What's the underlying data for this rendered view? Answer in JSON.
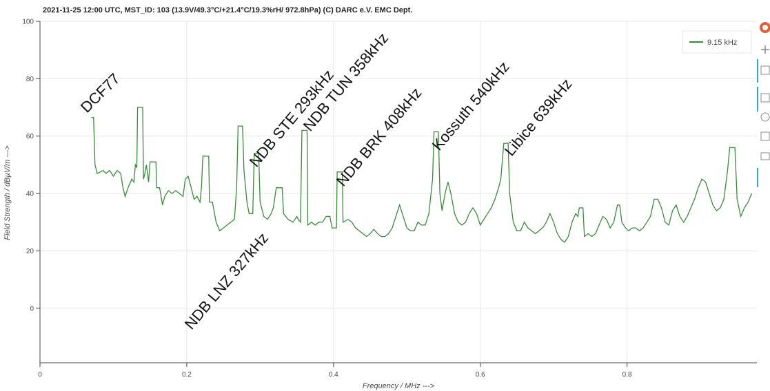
{
  "chart_data": {
    "type": "line",
    "title": "2021-11-25 12:00  UTC,  MST_ID:  103   (13.9V/49.3°C/+21.4°C/19.3%rH/ 972.8hPa)   (C) DARC e.V. EMC Dept.",
    "x_label": "Frequency / MHz --->",
    "y_label": "Field Strength / dBµV/m --->",
    "xlim": [
      0,
      0.977
    ],
    "ylim": [
      -19,
      100
    ],
    "xticks": [
      0,
      0.2,
      0.4,
      0.6,
      0.8
    ],
    "yticks": [
      0,
      20,
      40,
      60,
      80,
      100
    ],
    "grid": true,
    "legend": "top-right",
    "annotations": [
      "DCF77",
      "NDB STE 293kHz",
      "NDB TUN 358kHz",
      "NDB BRK 408kHz",
      "Kossuth 540kHz",
      "Libice 639kHz",
      "NDB LNZ 327kHz"
    ],
    "x": [
      0.07,
      0.073,
      0.075,
      0.078,
      0.082,
      0.086,
      0.09,
      0.095,
      0.1,
      0.105,
      0.11,
      0.113,
      0.116,
      0.12,
      0.125,
      0.128,
      0.13,
      0.132,
      0.133,
      0.14,
      0.141,
      0.143,
      0.145,
      0.148,
      0.15,
      0.158,
      0.159,
      0.163,
      0.167,
      0.17,
      0.175,
      0.18,
      0.185,
      0.19,
      0.195,
      0.198,
      0.202,
      0.206,
      0.21,
      0.214,
      0.218,
      0.22,
      0.222,
      0.23,
      0.231,
      0.235,
      0.24,
      0.245,
      0.25,
      0.255,
      0.26,
      0.265,
      0.268,
      0.27,
      0.276,
      0.278,
      0.282,
      0.285,
      0.29,
      0.292,
      0.298,
      0.3,
      0.305,
      0.31,
      0.315,
      0.318,
      0.322,
      0.33,
      0.332,
      0.338,
      0.345,
      0.35,
      0.352,
      0.355,
      0.357,
      0.364,
      0.365,
      0.37,
      0.375,
      0.38,
      0.385,
      0.39,
      0.395,
      0.398,
      0.404,
      0.405,
      0.412,
      0.413,
      0.42,
      0.425,
      0.43,
      0.435,
      0.44,
      0.445,
      0.45,
      0.455,
      0.46,
      0.465,
      0.47,
      0.475,
      0.48,
      0.485,
      0.49,
      0.495,
      0.5,
      0.505,
      0.51,
      0.515,
      0.52,
      0.525,
      0.53,
      0.535,
      0.537,
      0.543,
      0.545,
      0.548,
      0.552,
      0.556,
      0.56,
      0.565,
      0.57,
      0.575,
      0.58,
      0.585,
      0.59,
      0.595,
      0.6,
      0.605,
      0.61,
      0.615,
      0.62,
      0.625,
      0.628,
      0.632,
      0.638,
      0.64,
      0.645,
      0.65,
      0.655,
      0.66,
      0.665,
      0.67,
      0.675,
      0.68,
      0.685,
      0.69,
      0.695,
      0.7,
      0.705,
      0.71,
      0.715,
      0.72,
      0.725,
      0.73,
      0.733,
      0.735,
      0.74,
      0.742,
      0.747,
      0.752,
      0.757,
      0.762,
      0.767,
      0.772,
      0.777,
      0.782,
      0.787,
      0.79,
      0.793,
      0.798,
      0.802,
      0.807,
      0.812,
      0.817,
      0.822,
      0.827,
      0.832,
      0.837,
      0.842,
      0.847,
      0.852,
      0.857,
      0.862,
      0.867,
      0.872,
      0.877,
      0.882,
      0.887,
      0.892,
      0.897,
      0.902,
      0.907,
      0.912,
      0.917,
      0.922,
      0.927,
      0.932,
      0.937,
      0.94,
      0.947,
      0.95,
      0.955,
      0.96,
      0.965,
      0.97
    ],
    "series": [
      {
        "name": "9.15 kHz",
        "color": "#3a8a3a",
        "values": [
          66.5,
          66.5,
          50,
          47,
          47.5,
          48,
          47,
          48,
          46,
          48,
          47,
          42,
          39,
          42,
          45,
          44,
          50,
          49,
          70,
          70,
          45,
          47,
          50,
          44,
          51,
          51,
          42,
          42,
          36,
          39,
          41,
          40,
          41,
          40,
          39,
          45,
          46,
          42,
          38,
          39,
          37,
          42,
          53,
          53,
          37,
          37,
          30,
          27,
          28,
          29,
          30,
          31,
          42,
          63.5,
          63.5,
          48,
          37,
          33,
          33,
          54,
          54,
          37,
          32,
          31,
          33,
          35,
          42,
          42,
          33,
          31,
          30,
          32,
          31,
          30,
          62,
          62,
          29,
          30,
          29,
          30,
          30,
          32,
          32,
          28,
          28,
          47.5,
          47.5,
          30,
          31,
          30,
          28,
          27,
          26,
          25,
          26,
          27.5,
          26,
          25,
          25,
          26,
          28,
          32,
          36,
          32,
          28,
          27,
          27,
          30,
          29,
          29,
          33,
          45,
          61.5,
          61.5,
          40,
          34,
          40,
          44,
          40,
          33,
          30,
          29,
          30,
          33,
          35,
          33,
          29,
          31,
          33,
          35,
          38,
          42,
          45,
          57.5,
          57.5,
          40,
          30,
          27,
          27,
          30,
          28,
          27,
          26,
          27,
          28,
          30,
          33,
          30,
          26,
          24,
          23,
          25,
          30,
          33,
          32,
          35,
          35,
          25,
          26,
          25,
          26,
          29,
          32,
          31,
          28,
          30,
          36,
          36,
          30,
          28,
          27,
          28,
          28,
          27,
          28,
          30,
          32,
          38,
          38,
          35,
          30,
          29,
          34,
          36,
          32,
          30,
          32,
          35,
          38,
          42,
          45,
          44,
          40,
          36,
          34,
          35,
          38,
          48,
          56,
          56,
          38,
          32,
          35,
          37,
          40
        ]
      }
    ]
  }
}
